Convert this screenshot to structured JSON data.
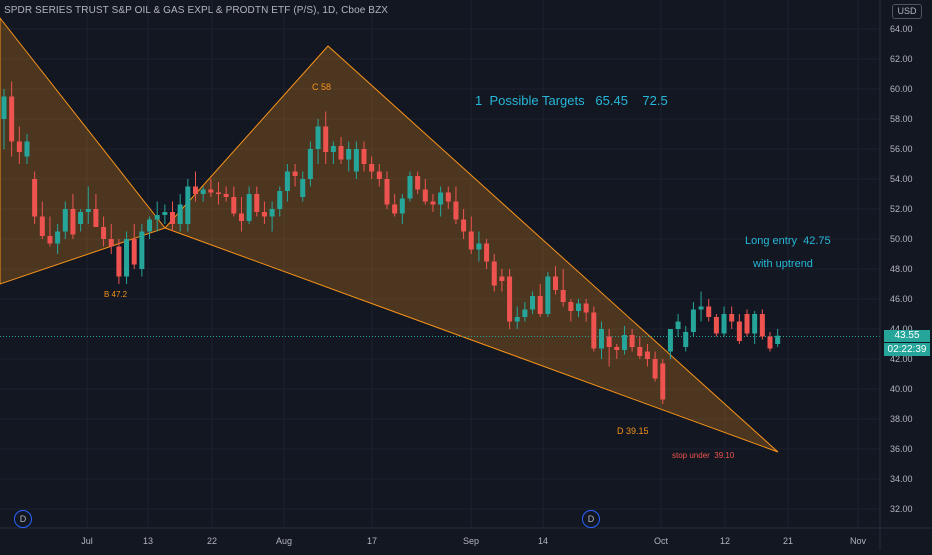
{
  "chart_title": "SPDR SERIES TRUST S&P OIL & GAS EXPL & PRODTN ETF (P/S), 1D, Cboe BZX",
  "currency": "USD",
  "price_label": "43.55",
  "countdown_label": "02:22:39",
  "dividend_marker": "D",
  "colors": {
    "background": "#131722",
    "up": "#26a69a",
    "down": "#ef5350",
    "pattern": "#f7931a",
    "annotation_cyan": "#27b7d8"
  },
  "chart_data": {
    "type": "candlestick",
    "title": "SPDR SERIES TRUST S&P OIL & GAS EXPL & PRODTN ETF (P/S), 1D, Cboe BZX",
    "ylim": [
      31,
      66
    ],
    "y_ticks": [
      "32.00",
      "34.00",
      "36.00",
      "38.00",
      "40.00",
      "42.00",
      "44.00",
      "46.00",
      "48.00",
      "50.00",
      "52.00",
      "54.00",
      "56.00",
      "58.00",
      "60.00",
      "62.00",
      "64.00"
    ],
    "x_ticks": [
      "Jul",
      "13",
      "22",
      "Aug",
      "17",
      "Sep",
      "14",
      "Oct",
      "12",
      "21",
      "Nov"
    ],
    "grid": true,
    "candles": [
      [
        58.0,
        60.0,
        56.0,
        59.5
      ],
      [
        59.5,
        60.5,
        55.5,
        56.5
      ],
      [
        56.5,
        57.5,
        55.0,
        55.8
      ],
      [
        55.5,
        57.0,
        55.0,
        56.5
      ],
      [
        54.0,
        54.5,
        51.0,
        51.5
      ],
      [
        51.5,
        52.5,
        50.0,
        50.2
      ],
      [
        50.2,
        51.5,
        49.5,
        49.7
      ],
      [
        49.7,
        51.0,
        49.0,
        50.5
      ],
      [
        50.5,
        52.5,
        50.0,
        52.0
      ],
      [
        52.0,
        53.0,
        50.0,
        50.3
      ],
      [
        51.0,
        52.0,
        50.5,
        51.8
      ],
      [
        51.8,
        53.5,
        51.0,
        52.0
      ],
      [
        52.0,
        53.0,
        51.0,
        50.8
      ],
      [
        50.8,
        51.5,
        49.5,
        50.0
      ],
      [
        50.0,
        51.0,
        49.0,
        49.5
      ],
      [
        49.5,
        50.0,
        47.0,
        47.5
      ],
      [
        47.5,
        50.5,
        47.0,
        50.0
      ],
      [
        50.0,
        51.0,
        48.0,
        48.3
      ],
      [
        48.0,
        51.0,
        47.5,
        50.5
      ],
      [
        50.5,
        51.5,
        50.0,
        51.3
      ],
      [
        51.3,
        52.5,
        50.5,
        51.6
      ],
      [
        51.6,
        52.3,
        51.0,
        51.8
      ],
      [
        51.8,
        52.5,
        50.5,
        51.0
      ],
      [
        51.0,
        53.0,
        50.5,
        52.3
      ],
      [
        51.0,
        54.0,
        50.5,
        53.5
      ],
      [
        53.5,
        54.5,
        52.5,
        53.0
      ],
      [
        53.0,
        53.5,
        52.5,
        53.3
      ],
      [
        53.3,
        54.0,
        52.8,
        53.1
      ],
      [
        53.1,
        53.8,
        52.3,
        53.0
      ],
      [
        53.0,
        53.5,
        52.5,
        52.8
      ],
      [
        52.8,
        53.5,
        51.5,
        51.7
      ],
      [
        51.7,
        52.8,
        50.5,
        51.2
      ],
      [
        51.2,
        53.5,
        51.0,
        53.0
      ],
      [
        53.0,
        53.5,
        51.5,
        51.8
      ],
      [
        51.8,
        52.5,
        51.0,
        51.5
      ],
      [
        51.5,
        52.5,
        50.5,
        52.0
      ],
      [
        52.0,
        53.5,
        51.5,
        53.2
      ],
      [
        53.2,
        55.0,
        52.5,
        54.5
      ],
      [
        54.5,
        55.0,
        53.5,
        54.2
      ],
      [
        52.8,
        54.5,
        52.5,
        54.0
      ],
      [
        54.0,
        56.5,
        53.5,
        56.0
      ],
      [
        56.0,
        58.0,
        55.0,
        57.5
      ],
      [
        57.5,
        58.5,
        55.0,
        55.8
      ],
      [
        55.8,
        56.5,
        55.0,
        56.2
      ],
      [
        56.2,
        56.8,
        55.0,
        55.3
      ],
      [
        55.3,
        56.5,
        54.5,
        56.0
      ],
      [
        54.5,
        56.5,
        54.0,
        56.0
      ],
      [
        56.0,
        56.5,
        54.5,
        55.0
      ],
      [
        55.0,
        55.5,
        54.0,
        54.5
      ],
      [
        54.5,
        55.0,
        53.5,
        54.0
      ],
      [
        54.0,
        54.5,
        52.0,
        52.3
      ],
      [
        52.3,
        53.0,
        51.5,
        51.7
      ],
      [
        51.7,
        53.0,
        51.0,
        52.7
      ],
      [
        52.7,
        54.5,
        52.5,
        54.2
      ],
      [
        54.2,
        54.5,
        53.0,
        53.3
      ],
      [
        53.3,
        54.0,
        52.3,
        52.5
      ],
      [
        52.5,
        53.0,
        51.8,
        52.3
      ],
      [
        52.3,
        53.5,
        51.5,
        53.1
      ],
      [
        53.1,
        53.5,
        52.0,
        52.5
      ],
      [
        52.5,
        53.5,
        51.0,
        51.3
      ],
      [
        51.3,
        52.0,
        50.0,
        50.5
      ],
      [
        50.5,
        51.5,
        49.0,
        49.3
      ],
      [
        49.3,
        50.5,
        48.5,
        49.7
      ],
      [
        49.7,
        50.0,
        48.0,
        48.5
      ],
      [
        48.5,
        49.0,
        46.5,
        46.9
      ],
      [
        47.5,
        48.0,
        46.5,
        47.2
      ],
      [
        47.5,
        48.0,
        44.0,
        44.5
      ],
      [
        44.5,
        45.5,
        44.0,
        44.8
      ],
      [
        44.8,
        45.8,
        44.5,
        45.3
      ],
      [
        45.3,
        46.5,
        45.0,
        46.2
      ],
      [
        46.2,
        47.0,
        44.8,
        45.0
      ],
      [
        45.0,
        47.8,
        44.8,
        47.5
      ],
      [
        47.5,
        48.2,
        46.3,
        46.6
      ],
      [
        46.6,
        48.0,
        45.5,
        45.8
      ],
      [
        45.8,
        46.0,
        44.5,
        45.2
      ],
      [
        45.2,
        46.0,
        44.8,
        45.7
      ],
      [
        45.7,
        46.0,
        44.5,
        45.1
      ],
      [
        45.1,
        45.5,
        42.5,
        42.7
      ],
      [
        42.7,
        44.5,
        42.0,
        44.0
      ],
      [
        43.5,
        44.0,
        41.5,
        42.8
      ],
      [
        42.8,
        43.0,
        42.0,
        42.6
      ],
      [
        42.6,
        44.2,
        42.3,
        43.6
      ],
      [
        43.6,
        44.0,
        42.5,
        42.8
      ],
      [
        42.8,
        43.5,
        42.0,
        42.2
      ],
      [
        42.5,
        43.0,
        41.5,
        42.0
      ],
      [
        42.0,
        42.5,
        40.5,
        40.7
      ],
      [
        41.7,
        42.0,
        39.0,
        39.3
      ],
      [
        42.5,
        44.0,
        42.0,
        44.0
      ],
      [
        44.0,
        45.0,
        43.5,
        44.5
      ],
      [
        42.8,
        44.2,
        42.5,
        43.8
      ],
      [
        43.8,
        45.8,
        43.5,
        45.3
      ],
      [
        45.3,
        46.5,
        44.5,
        45.5
      ],
      [
        45.5,
        46.0,
        44.5,
        44.8
      ],
      [
        44.8,
        45.0,
        43.5,
        43.7
      ],
      [
        43.7,
        45.5,
        43.5,
        45.0
      ],
      [
        45.0,
        45.5,
        44.0,
        44.5
      ],
      [
        44.5,
        45.0,
        43.0,
        43.2
      ],
      [
        45.0,
        45.3,
        43.5,
        43.7
      ],
      [
        43.7,
        45.2,
        43.0,
        45.0
      ],
      [
        45.0,
        45.3,
        43.3,
        43.5
      ],
      [
        43.5,
        43.8,
        42.5,
        42.7
      ],
      [
        43.0,
        44.0,
        42.8,
        43.55
      ]
    ],
    "annotations": [
      {
        "label": "B 47.2"
      },
      {
        "label": "C 58"
      },
      {
        "label": "D 39.15"
      },
      {
        "label": "stop under  39.10"
      },
      {
        "label": "1  Possible Targets   65.45    72.5"
      },
      {
        "label": "Long entry  42.75"
      },
      {
        "label": "with uptrend"
      }
    ]
  }
}
